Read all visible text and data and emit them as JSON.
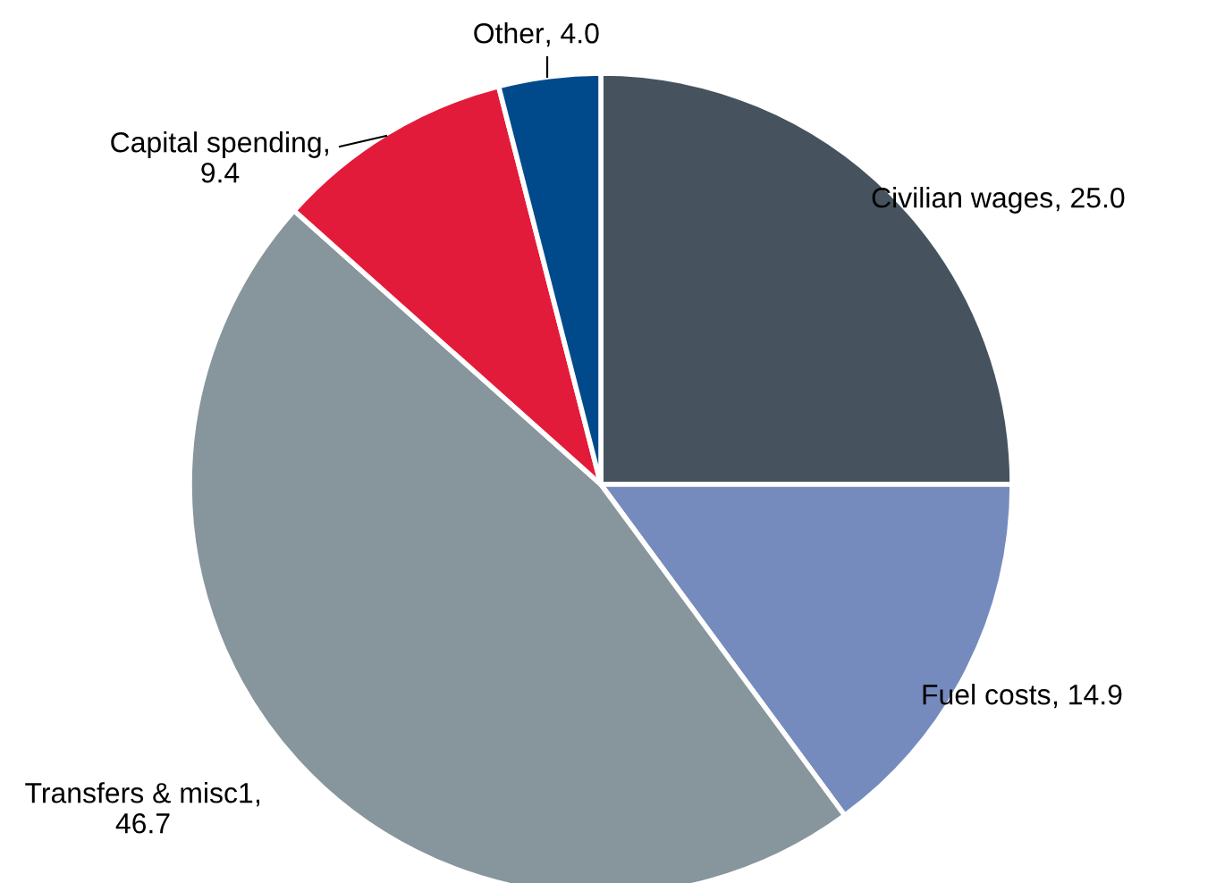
{
  "chart_data": {
    "type": "pie",
    "categories": [
      "Civilian wages",
      "Fuel costs",
      "Transfers & misc1",
      "Capital spending",
      "Other"
    ],
    "values": [
      25.0,
      14.9,
      46.7,
      9.4,
      4.0
    ],
    "value_labels": [
      ", 25.0",
      ", 14.9",
      ", 46.7",
      ", 9.4",
      ", 4.0"
    ],
    "colors": [
      "#46535e",
      "#768bbd",
      "#87959c",
      "#e31b3b",
      "#004a8c"
    ]
  }
}
